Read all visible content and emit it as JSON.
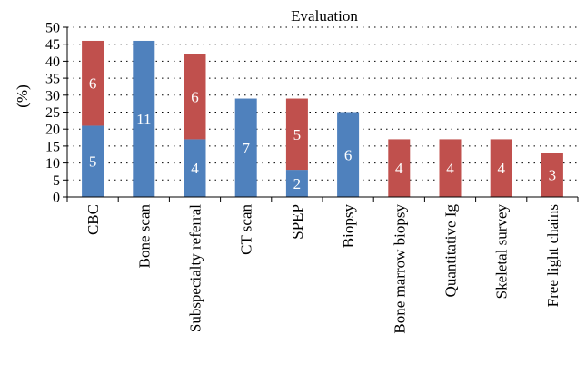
{
  "chart_data": {
    "type": "bar",
    "stacked": true,
    "title": "Evaluation",
    "ylabel": "(%)",
    "xlabel": "",
    "ylim": [
      0,
      50
    ],
    "yticks": [
      0,
      5,
      10,
      15,
      20,
      25,
      30,
      35,
      40,
      45,
      50
    ],
    "grid": "dotted",
    "categories": [
      "CBC",
      "Bone scan",
      "Subspecialty referral",
      "CT scan",
      "SPEP",
      "Biopsy",
      "Bone marrow biopsy",
      "Quantitative Ig",
      "Skeletal survey",
      "Free light chains"
    ],
    "series": [
      {
        "color": "#4f81bd",
        "values": [
          21,
          46,
          17,
          29,
          8,
          25,
          0,
          0,
          0,
          0
        ],
        "labels": [
          "5",
          "11",
          "4",
          "7",
          "2",
          "6",
          "",
          "",
          "",
          ""
        ]
      },
      {
        "color": "#c0504d",
        "values": [
          25,
          0,
          25,
          0,
          21,
          0,
          17,
          17,
          17,
          13
        ],
        "labels": [
          "6",
          "",
          "6",
          "",
          "5",
          "",
          "4",
          "4",
          "4",
          "3"
        ]
      }
    ]
  }
}
